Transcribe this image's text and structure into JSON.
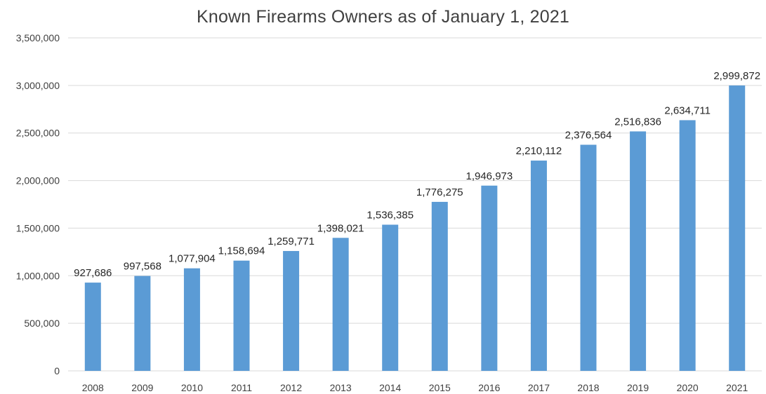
{
  "chart_data": {
    "type": "bar",
    "title": "Known Firearms Owners as of January 1, 2021",
    "xlabel": "",
    "ylabel": "",
    "categories": [
      "2008",
      "2009",
      "2010",
      "2011",
      "2012",
      "2013",
      "2014",
      "2015",
      "2016",
      "2017",
      "2018",
      "2019",
      "2020",
      "2021"
    ],
    "values": [
      927686,
      997568,
      1077904,
      1158694,
      1259771,
      1398021,
      1536385,
      1776275,
      1946973,
      2210112,
      2376564,
      2516836,
      2634711,
      2999872
    ],
    "data_labels": [
      "927,686",
      "997,568",
      "1,077,904",
      "1,158,694",
      "1,259,771",
      "1,398,021",
      "1,536,385",
      "1,776,275",
      "1,946,973",
      "2,210,112",
      "2,376,564",
      "2,516,836",
      "2,634,711",
      "2,999,872"
    ],
    "y_ticks": [
      0,
      500000,
      1000000,
      1500000,
      2000000,
      2500000,
      3000000,
      3500000
    ],
    "y_tick_labels": [
      "0",
      "500,000",
      "1,000,000",
      "1,500,000",
      "2,000,000",
      "2,500,000",
      "3,000,000",
      "3,500,000"
    ],
    "ylim": [
      0,
      3500000
    ],
    "grid": true,
    "legend": "none",
    "bar_color": "#5B9BD5",
    "grid_color": "#D9D9D9"
  }
}
